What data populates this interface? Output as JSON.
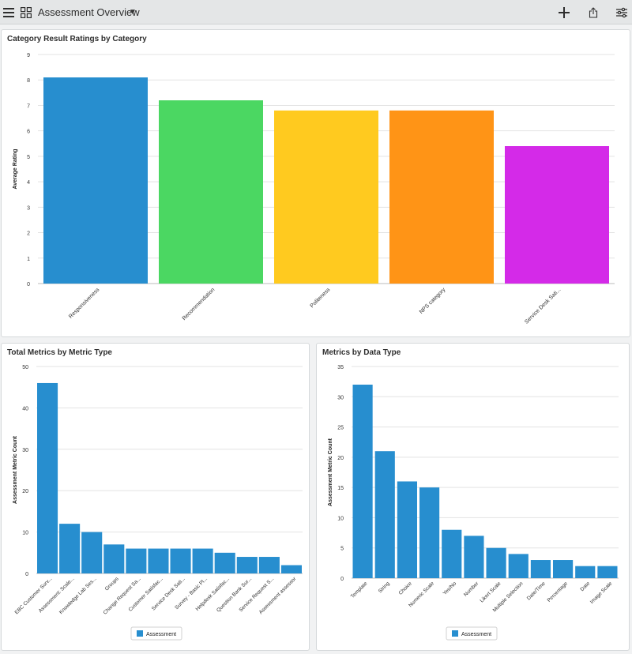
{
  "header": {
    "title": "Assessment Overview",
    "icons": [
      "menu-icon",
      "grid-icon",
      "caret-down-icon",
      "plus-icon",
      "share-icon",
      "filter-icon"
    ]
  },
  "charts": {
    "category": {
      "title": "Category Result Ratings by Category"
    },
    "metric_type": {
      "title": "Total Metrics by Metric Type",
      "legend": "Assessment"
    },
    "data_type": {
      "title": "Metrics by Data Type",
      "legend": "Assessment"
    }
  },
  "chart_data": [
    {
      "type": "bar",
      "title": "Category Result Ratings by Category",
      "xlabel": "",
      "ylabel": "Average Rating",
      "ylim": [
        0,
        9
      ],
      "yticks": [
        0,
        1,
        2,
        3,
        4,
        5,
        6,
        7,
        8,
        9
      ],
      "categories": [
        "Responsiveness",
        "Recommendation",
        "Politeness",
        "NPS category",
        "Service Desk Sati..."
      ],
      "values": [
        8.1,
        7.2,
        6.8,
        6.8,
        5.4
      ],
      "colors": [
        "#278ecf",
        "#4bd762",
        "#ffca1f",
        "#ff9416",
        "#d42ae8"
      ],
      "grid": true,
      "legend": "none"
    },
    {
      "type": "bar",
      "title": "Total Metrics by Metric Type",
      "xlabel": "",
      "ylabel": "Assessment Metric Count",
      "ylim": [
        0,
        50
      ],
      "yticks": [
        0,
        10,
        20,
        30,
        40,
        50
      ],
      "categories": [
        "EBC Customer Surv...",
        "Assessment: Scale...",
        "Knowledge Lab Ses...",
        "Groups",
        "Change Request Sa...",
        "Customer Satisfac...",
        "Service Desk Sati...",
        "Survey - Basic Pl...",
        "Helpdesk Satisfac...",
        "Question Bank Sur...",
        "Service Request S...",
        "Assessment assessor"
      ],
      "series": [
        {
          "name": "Assessment",
          "values": [
            46,
            12,
            10,
            7,
            6,
            6,
            6,
            6,
            5,
            4,
            4,
            2
          ],
          "color": "#278ecf"
        }
      ],
      "grid": true,
      "legend": "bottom"
    },
    {
      "type": "bar",
      "title": "Metrics by Data Type",
      "xlabel": "",
      "ylabel": "Assessment Metric Count",
      "ylim": [
        0,
        35
      ],
      "yticks": [
        0,
        5,
        10,
        15,
        20,
        25,
        30,
        35
      ],
      "categories": [
        "Template",
        "String",
        "Choice",
        "Numeric Scale",
        "Yes/No",
        "Number",
        "Likert Scale",
        "Multiple Selection",
        "Date/Time",
        "Percentage",
        "Date",
        "Image Scale"
      ],
      "series": [
        {
          "name": "Assessment",
          "values": [
            32,
            21,
            16,
            15,
            8,
            7,
            5,
            4,
            3,
            3,
            2,
            2
          ],
          "color": "#278ecf"
        }
      ],
      "grid": true,
      "legend": "bottom"
    }
  ]
}
